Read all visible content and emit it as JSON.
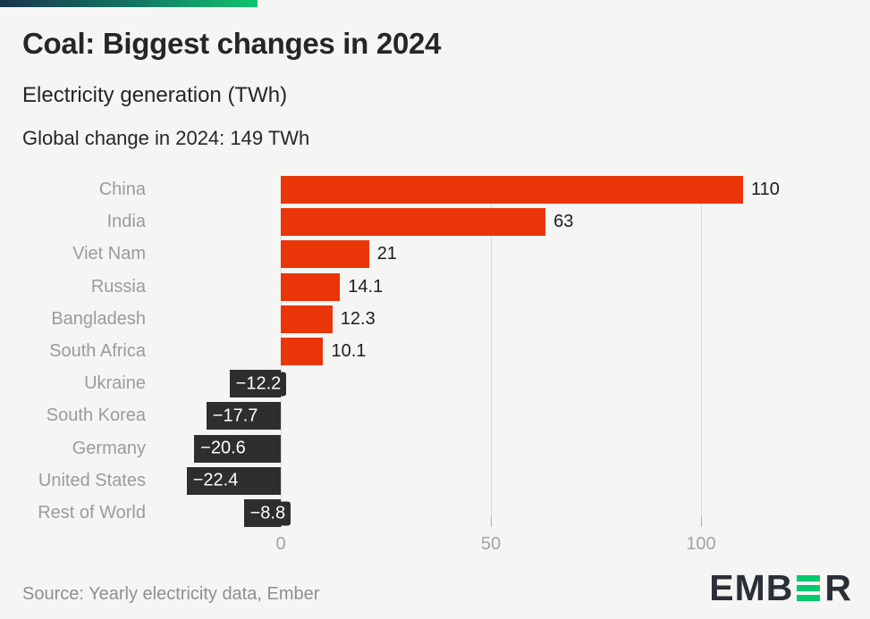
{
  "header": {
    "title": "Coal: Biggest changes in 2024",
    "subtitle": "Electricity generation (TWh)",
    "note": "Global change in 2024: 149 TWh"
  },
  "chart_data": {
    "type": "bar",
    "orientation": "horizontal",
    "title": "Coal: Biggest changes in 2024",
    "subtitle": "Electricity generation (TWh)",
    "annotation": "Global change in 2024: 149 TWh",
    "categories": [
      "China",
      "India",
      "Viet Nam",
      "Russia",
      "Bangladesh",
      "South Africa",
      "Ukraine",
      "South Korea",
      "Germany",
      "United States",
      "Rest of World"
    ],
    "values": [
      110,
      63,
      21,
      14.1,
      12.3,
      10.1,
      -12.2,
      -17.7,
      -20.6,
      -22.4,
      -8.8
    ],
    "value_labels": [
      "110",
      "63",
      "21",
      "14.1",
      "12.3",
      "10.1",
      "−12.2",
      "−17.7",
      "−20.6",
      "−22.4",
      "−8.8"
    ],
    "x_ticks": [
      0,
      50,
      100
    ],
    "x_tick_labels": [
      "0",
      "50",
      "100"
    ],
    "xlim": [
      -30,
      135
    ],
    "grid": "vertical",
    "legend": "none",
    "positive_color": "#ea3508",
    "negative_color": "#2e2e2e"
  },
  "colors": {
    "background": "#f5f5f3",
    "gridline": "#dbdbd8",
    "tick": "#aeaeab",
    "topbar_gradient": [
      "#18364c",
      "#147a64",
      "#0fc56c"
    ]
  },
  "footer": {
    "source": "Source: Yearly electricity data, Ember",
    "logo": {
      "prefix": "EMB",
      "suffix": "R",
      "green_color": "#00c96e"
    }
  }
}
